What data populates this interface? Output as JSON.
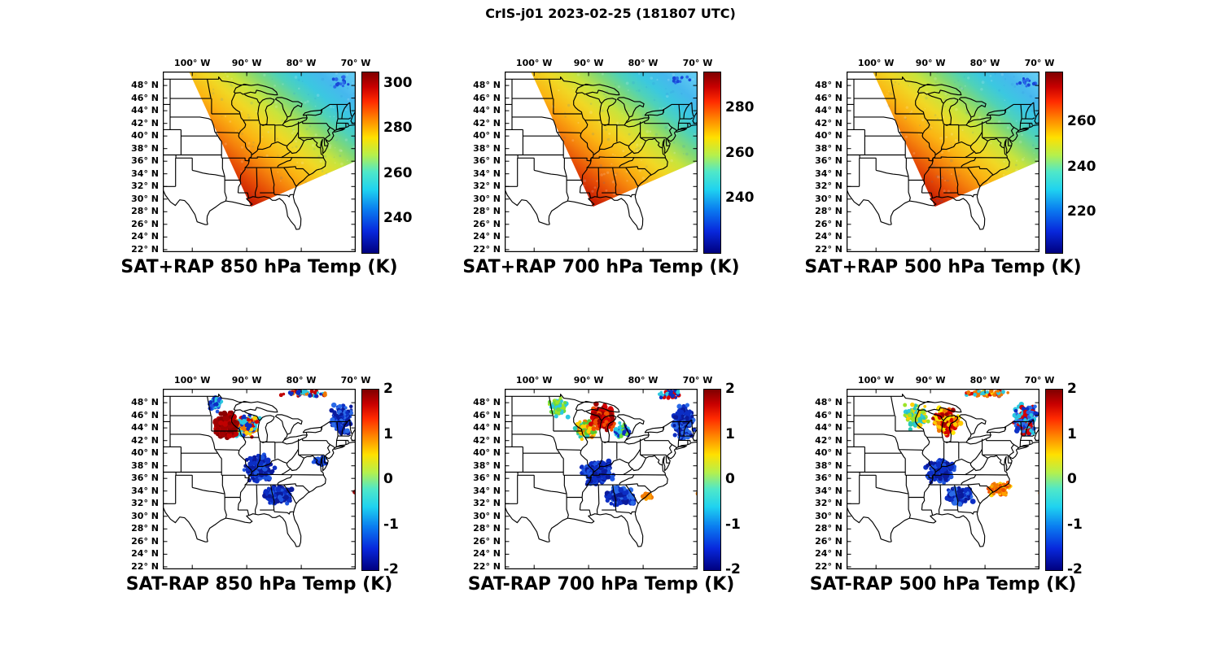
{
  "figure": {
    "title": "CrIS-j01 2023-02-25 (181807 UTC)",
    "background": "#ffffff"
  },
  "axes": {
    "lon_ticks": [
      {
        "label": "100° W",
        "deg": -100
      },
      {
        "label": "90° W",
        "deg": -90
      },
      {
        "label": "80° W",
        "deg": -80
      },
      {
        "label": "70° W",
        "deg": -70
      }
    ],
    "lat_ticks": [
      {
        "label": "48° N",
        "deg": 48
      },
      {
        "label": "46° N",
        "deg": 46
      },
      {
        "label": "44° N",
        "deg": 44
      },
      {
        "label": "42° N",
        "deg": 42
      },
      {
        "label": "40° N",
        "deg": 40
      },
      {
        "label": "38° N",
        "deg": 38
      },
      {
        "label": "36° N",
        "deg": 36
      },
      {
        "label": "34° N",
        "deg": 34
      },
      {
        "label": "32° N",
        "deg": 32
      },
      {
        "label": "30° N",
        "deg": 30
      },
      {
        "label": "28° N",
        "deg": 28
      },
      {
        "label": "26° N",
        "deg": 26
      },
      {
        "label": "24° N",
        "deg": 24
      },
      {
        "label": "22° N",
        "deg": 22
      }
    ],
    "lon_range": [
      -105.4,
      -70.0
    ],
    "lat_range": [
      21.6,
      50.2
    ]
  },
  "colorbar": {
    "stops": [
      [
        0,
        "#7f0000"
      ],
      [
        0.08,
        "#c80000"
      ],
      [
        0.16,
        "#ff2a00"
      ],
      [
        0.27,
        "#ff9000"
      ],
      [
        0.36,
        "#ffe000"
      ],
      [
        0.46,
        "#b4f04e"
      ],
      [
        0.55,
        "#50e8c8"
      ],
      [
        0.65,
        "#1fd2f0"
      ],
      [
        0.76,
        "#0a7cf0"
      ],
      [
        0.88,
        "#0828dc"
      ],
      [
        1,
        "#00007f"
      ]
    ]
  },
  "chart_data": {
    "type": "map",
    "satellite": "CrIS-j01",
    "date": "2023-02-25",
    "time_utc": "181807 UTC",
    "projection_note": "equirectangular approximation of eastern CONUS with state borders",
    "swath_polygon_lonlat": [
      [
        -100.6,
        50.2
      ],
      [
        -89.2,
        28.8
      ],
      [
        -70.0,
        36.0
      ],
      [
        -70.0,
        50.2
      ]
    ],
    "temperature_gradient_stops": [
      [
        0,
        "#c81e02"
      ],
      [
        0.1,
        "#e64c06"
      ],
      [
        0.2,
        "#f5820c"
      ],
      [
        0.3,
        "#fbb312"
      ],
      [
        0.42,
        "#f0d825"
      ],
      [
        0.52,
        "#c8e43c"
      ],
      [
        0.62,
        "#7ed878"
      ],
      [
        0.7,
        "#4fd2b8"
      ],
      [
        0.78,
        "#3bc8e0"
      ],
      [
        0.88,
        "#46b8ee"
      ],
      [
        1,
        "#63ccf4"
      ]
    ],
    "panels": [
      {
        "id": "sat-plus-rap-850",
        "row": 0,
        "col": 0,
        "kind": "swath",
        "seed": 18,
        "title": "SAT+RAP 850 hPa Temp (K)",
        "description": "Retrieved 850 hPa temperature swath: ~300 K over Gulf states decreasing to ~235 K over New England",
        "colorbar": {
          "min": 225,
          "max": 305,
          "ticks": [
            300,
            280,
            260,
            240
          ]
        },
        "regions": [
          {
            "c": [
              -72.8,
              48.6
            ],
            "s": [
              2.6,
              1.3
            ],
            "n": 14,
            "r": 2,
            "colors": [
              "#1848d8",
              "#2a6ae8"
            ]
          }
        ]
      },
      {
        "id": "sat-plus-rap-700",
        "row": 0,
        "col": 1,
        "kind": "swath",
        "seed": 27,
        "title": "SAT+RAP 700 hPa Temp (K)",
        "description": "Retrieved 700 hPa temperature swath: ~290 K south to ~230 K northeast",
        "colorbar": {
          "min": 216,
          "max": 296,
          "ticks": [
            280,
            260,
            240
          ]
        },
        "regions": [
          {
            "c": [
              -73.2,
              48.9
            ],
            "s": [
              2.6,
              1.2
            ],
            "n": 12,
            "r": 2,
            "colors": [
              "#1848d8",
              "#2a6ae8"
            ]
          }
        ]
      },
      {
        "id": "sat-plus-rap-500",
        "row": 0,
        "col": 2,
        "kind": "swath",
        "seed": 36,
        "title": "SAT+RAP 500 hPa Temp (K)",
        "description": "Retrieved 500 hPa temperature swath: ~275 K south to ~215 K northeast",
        "colorbar": {
          "min": 202,
          "max": 282,
          "ticks": [
            260,
            240,
            220
          ]
        },
        "regions": [
          {
            "c": [
              -72.5,
              48.4
            ],
            "s": [
              2.8,
              1.3
            ],
            "n": 12,
            "r": 2,
            "colors": [
              "#1848d8",
              "#2a6ae8"
            ]
          }
        ]
      },
      {
        "id": "sat-minus-rap-850",
        "row": 1,
        "col": 0,
        "kind": "scatter",
        "seed": 85,
        "title": "SAT-RAP 850 hPa Temp (K)",
        "description": "SAT minus RAP 850 hPa differences: strong warm (+2 K) blob over MN/IA/WI, cold (-2 K) clusters over Ohio valley, Southeast and New England",
        "colorbar": {
          "min": -2,
          "max": 2,
          "ticks": [
            2,
            1,
            0,
            -1,
            -2
          ]
        },
        "regions": [
          {
            "c": [
              -95.8,
              47.8
            ],
            "s": [
              1.8,
              1.6
            ],
            "n": 70,
            "r": 2.4,
            "colors": [
              "#0c2ec4",
              "#1e55e0",
              "#2cc8e0"
            ]
          },
          {
            "c": [
              -90.0,
              44.3
            ],
            "s": [
              2.6,
              2.2
            ],
            "n": 150,
            "r": 2.5,
            "colors": [
              "#d40000",
              "#f07800",
              "#ffd000",
              "#2cc8e0",
              "#0c2ec4"
            ]
          },
          {
            "c": [
              -93.8,
              44.3
            ],
            "s": [
              2.6,
              2.4
            ],
            "n": 260,
            "r": 3,
            "colors": [
              "#8b0000",
              "#a00000",
              "#c00000"
            ]
          },
          {
            "c": [
              -87.8,
              37.6
            ],
            "s": [
              3.4,
              2.4
            ],
            "n": 220,
            "r": 2.8,
            "colors": [
              "#0a1a9c",
              "#0c2ec4",
              "#1e55e0"
            ]
          },
          {
            "c": [
              -84.2,
              33.4
            ],
            "s": [
              3.0,
              1.7
            ],
            "n": 170,
            "r": 2.8,
            "colors": [
              "#0a1a9c",
              "#0c2ec4",
              "#1e55e0"
            ]
          },
          {
            "c": [
              -76.5,
              38.8
            ],
            "s": [
              1.6,
              1.2
            ],
            "n": 40,
            "r": 2.4,
            "colors": [
              "#0c2ec4",
              "#1e55e0"
            ]
          },
          {
            "c": [
              -72.6,
              45.3
            ],
            "s": [
              2.4,
              3.0
            ],
            "n": 190,
            "r": 2.6,
            "colors": [
              "#0a1a9c",
              "#0c2ec4",
              "#2a6ae8"
            ]
          },
          {
            "c": [
              -80.0,
              49.4
            ],
            "s": [
              6.0,
              0.7
            ],
            "n": 55,
            "r": 2.2,
            "colors": [
              "#c00000",
              "#f07800",
              "#0c2ec4",
              "#2cc8e0"
            ]
          },
          {
            "c": [
              -70.2,
              33.85
            ],
            "s": [
              0.05,
              0.05
            ],
            "n": 1,
            "r": 2.6,
            "colors": [
              "#a00000"
            ]
          }
        ]
      },
      {
        "id": "sat-minus-rap-700",
        "row": 1,
        "col": 1,
        "kind": "scatter",
        "seed": 70,
        "title": "SAT-RAP 700 hPa Temp (K)",
        "description": "SAT minus RAP 700 hPa differences: warm (+2 K) blob over WI/upper MI ringed by green/cyan, cold clusters south and over New England, orange dots near SC coast",
        "colorbar": {
          "min": -2,
          "max": 2,
          "ticks": [
            2,
            1,
            0,
            -1,
            -2
          ]
        },
        "regions": [
          {
            "c": [
              -95.6,
              47.2
            ],
            "s": [
              2.0,
              1.8
            ],
            "n": 90,
            "r": 2.4,
            "colors": [
              "#6adc3c",
              "#9ce428",
              "#2cc8e0"
            ]
          },
          {
            "c": [
              -90.6,
              43.8
            ],
            "s": [
              2.3,
              2.0
            ],
            "n": 120,
            "r": 2.4,
            "colors": [
              "#58c830",
              "#2cc8b4",
              "#ffd000",
              "#f07800"
            ]
          },
          {
            "c": [
              -87.3,
              45.6
            ],
            "s": [
              2.8,
              2.3
            ],
            "n": 260,
            "r": 2.9,
            "colors": [
              "#a00000",
              "#d40000",
              "#f05000"
            ]
          },
          {
            "c": [
              -83.8,
              43.5
            ],
            "s": [
              1.8,
              1.6
            ],
            "n": 70,
            "r": 2.4,
            "colors": [
              "#2cc8e0",
              "#6adc3c",
              "#0c2ec4"
            ]
          },
          {
            "c": [
              -88.3,
              37.0
            ],
            "s": [
              3.4,
              2.3
            ],
            "n": 220,
            "r": 2.8,
            "colors": [
              "#0a1a9c",
              "#0c2ec4",
              "#1e55e0"
            ]
          },
          {
            "c": [
              -84.2,
              33.2
            ],
            "s": [
              3.2,
              1.7
            ],
            "n": 180,
            "r": 2.8,
            "colors": [
              "#0a1a9c",
              "#0c2ec4",
              "#2a6ae8"
            ]
          },
          {
            "c": [
              -79.3,
              33.3
            ],
            "s": [
              1.3,
              0.9
            ],
            "n": 22,
            "r": 2.6,
            "colors": [
              "#f07800",
              "#ffa000"
            ]
          },
          {
            "c": [
              -72.6,
              45.0
            ],
            "s": [
              2.4,
              3.2
            ],
            "n": 190,
            "r": 2.6,
            "colors": [
              "#0a1a9c",
              "#0c2ec4",
              "#2a6ae8"
            ]
          },
          {
            "c": [
              -75.5,
              49.3
            ],
            "s": [
              3.5,
              0.8
            ],
            "n": 45,
            "r": 2.2,
            "colors": [
              "#d40000",
              "#0c2ec4",
              "#2cc8e0"
            ]
          },
          {
            "c": [
              -69.9,
              33.6
            ],
            "s": [
              0.05,
              0.05
            ],
            "n": 1,
            "r": 2.6,
            "colors": [
              "#f08000"
            ]
          }
        ]
      },
      {
        "id": "sat-minus-rap-500",
        "row": 1,
        "col": 2,
        "kind": "scatter",
        "seed": 50,
        "title": "SAT-RAP 500 hPa Temp (K)",
        "description": "SAT minus RAP 500 hPa differences: mottled warm streaks over WI/MI, cyan-green over MN/IA, cold clusters south, orange streak along Carolinas coast, mixed New England",
        "colorbar": {
          "min": -2,
          "max": 2,
          "ticks": [
            2,
            1,
            0,
            -1,
            -2
          ]
        },
        "regions": [
          {
            "c": [
              -92.6,
              45.8
            ],
            "s": [
              2.6,
              2.2
            ],
            "n": 150,
            "r": 2.5,
            "colors": [
              "#2cc8e0",
              "#2cc8b4",
              "#9ce428",
              "#ffd000"
            ]
          },
          {
            "c": [
              -87.2,
              45.2
            ],
            "s": [
              3.0,
              2.5
            ],
            "n": 240,
            "r": 2.7,
            "colors": [
              "#d40000",
              "#f07800",
              "#ffc800",
              "#ffe600",
              "#a00000"
            ]
          },
          {
            "c": [
              -88.0,
              37.2
            ],
            "s": [
              3.3,
              2.3
            ],
            "n": 200,
            "r": 2.8,
            "colors": [
              "#0a1a9c",
              "#0c2ec4",
              "#1e55e0"
            ]
          },
          {
            "c": [
              -84.6,
              33.3
            ],
            "s": [
              3.0,
              1.7
            ],
            "n": 170,
            "r": 2.8,
            "colors": [
              "#0a1a9c",
              "#0c2ec4",
              "#2a6ae8"
            ]
          },
          {
            "c": [
              -77.3,
              34.4
            ],
            "s": [
              2.6,
              1.4
            ],
            "n": 90,
            "r": 2.5,
            "colors": [
              "#f07800",
              "#ffa000",
              "#ffd000",
              "#f05000"
            ]
          },
          {
            "c": [
              -72.6,
              45.4
            ],
            "s": [
              2.6,
              3.0
            ],
            "n": 190,
            "r": 2.6,
            "colors": [
              "#0c2ec4",
              "#2a6ae8",
              "#d40000",
              "#2cc8e0"
            ]
          },
          {
            "c": [
              -80.0,
              49.5
            ],
            "s": [
              6.0,
              0.7
            ],
            "n": 65,
            "r": 2.2,
            "colors": [
              "#d40000",
              "#f07800",
              "#2cc8e0",
              "#ffd000"
            ]
          },
          {
            "c": [
              -69.8,
              33.7
            ],
            "s": [
              0.05,
              0.05
            ],
            "n": 1,
            "r": 2.6,
            "colors": [
              "#f08000"
            ]
          }
        ]
      }
    ]
  }
}
